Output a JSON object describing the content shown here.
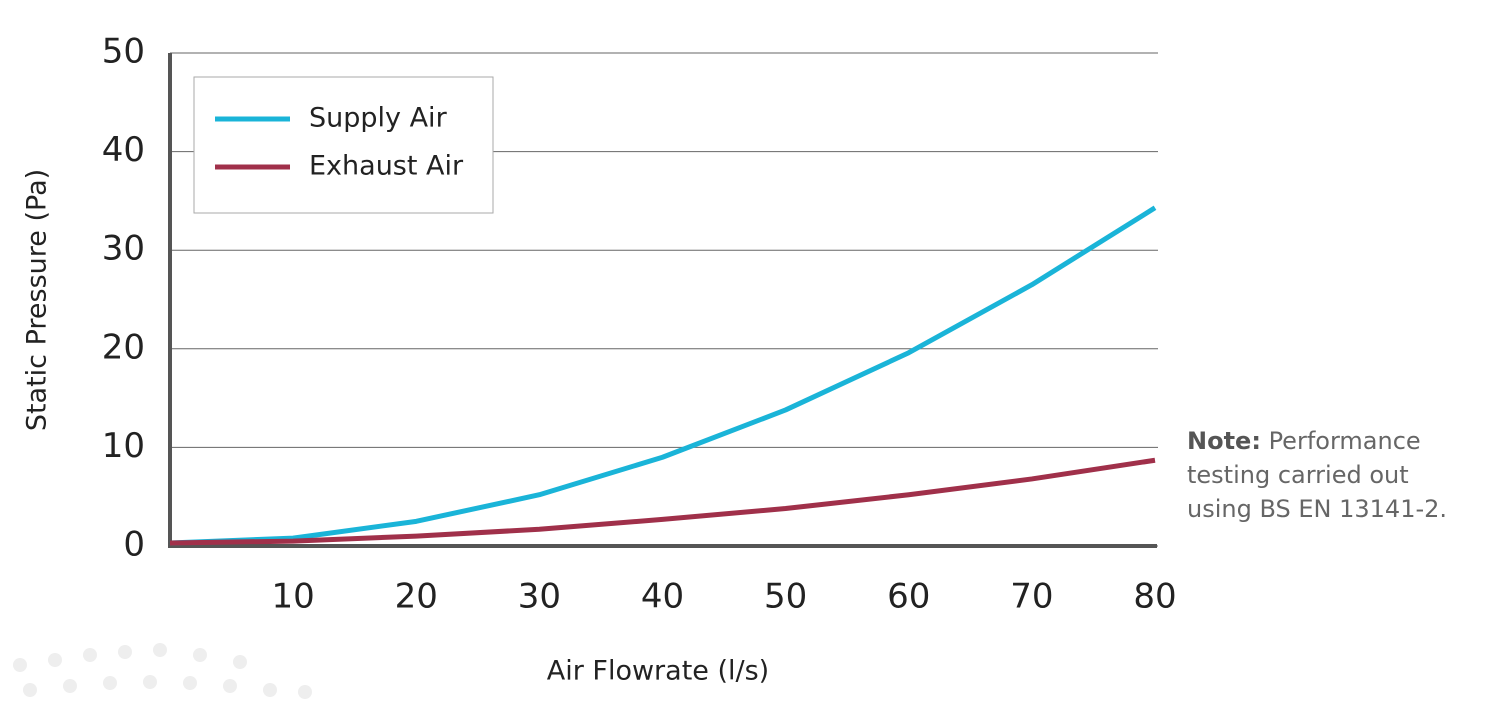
{
  "chart_data": {
    "type": "line",
    "x_label": "Air Flowrate (l/s)",
    "y_label": "Static Pressure (Pa)",
    "x": [
      0,
      10,
      20,
      30,
      40,
      50,
      60,
      70,
      80
    ],
    "series": [
      {
        "name": "Supply Air",
        "color": "#1ab4d8",
        "values": [
          0.3,
          0.8,
          2.5,
          5.2,
          9,
          13.8,
          19.6,
          26.5,
          34.3
        ]
      },
      {
        "name": "Exhaust Air",
        "color": "#a0304a",
        "values": [
          0.3,
          0.5,
          1.0,
          1.7,
          2.7,
          3.8,
          5.2,
          6.8,
          8.7
        ]
      }
    ],
    "xlim": [
      0,
      80
    ],
    "xticks": [
      10,
      20,
      30,
      40,
      50,
      60,
      70,
      80
    ],
    "ylim": [
      0,
      50
    ],
    "yticks": [
      0,
      10,
      20,
      30,
      40,
      50
    ],
    "grid": true,
    "legend": "top-left",
    "note": {
      "label": "Note:",
      "lines": [
        "Performance",
        "testing carried out",
        "using BS EN 13141-2."
      ]
    }
  }
}
